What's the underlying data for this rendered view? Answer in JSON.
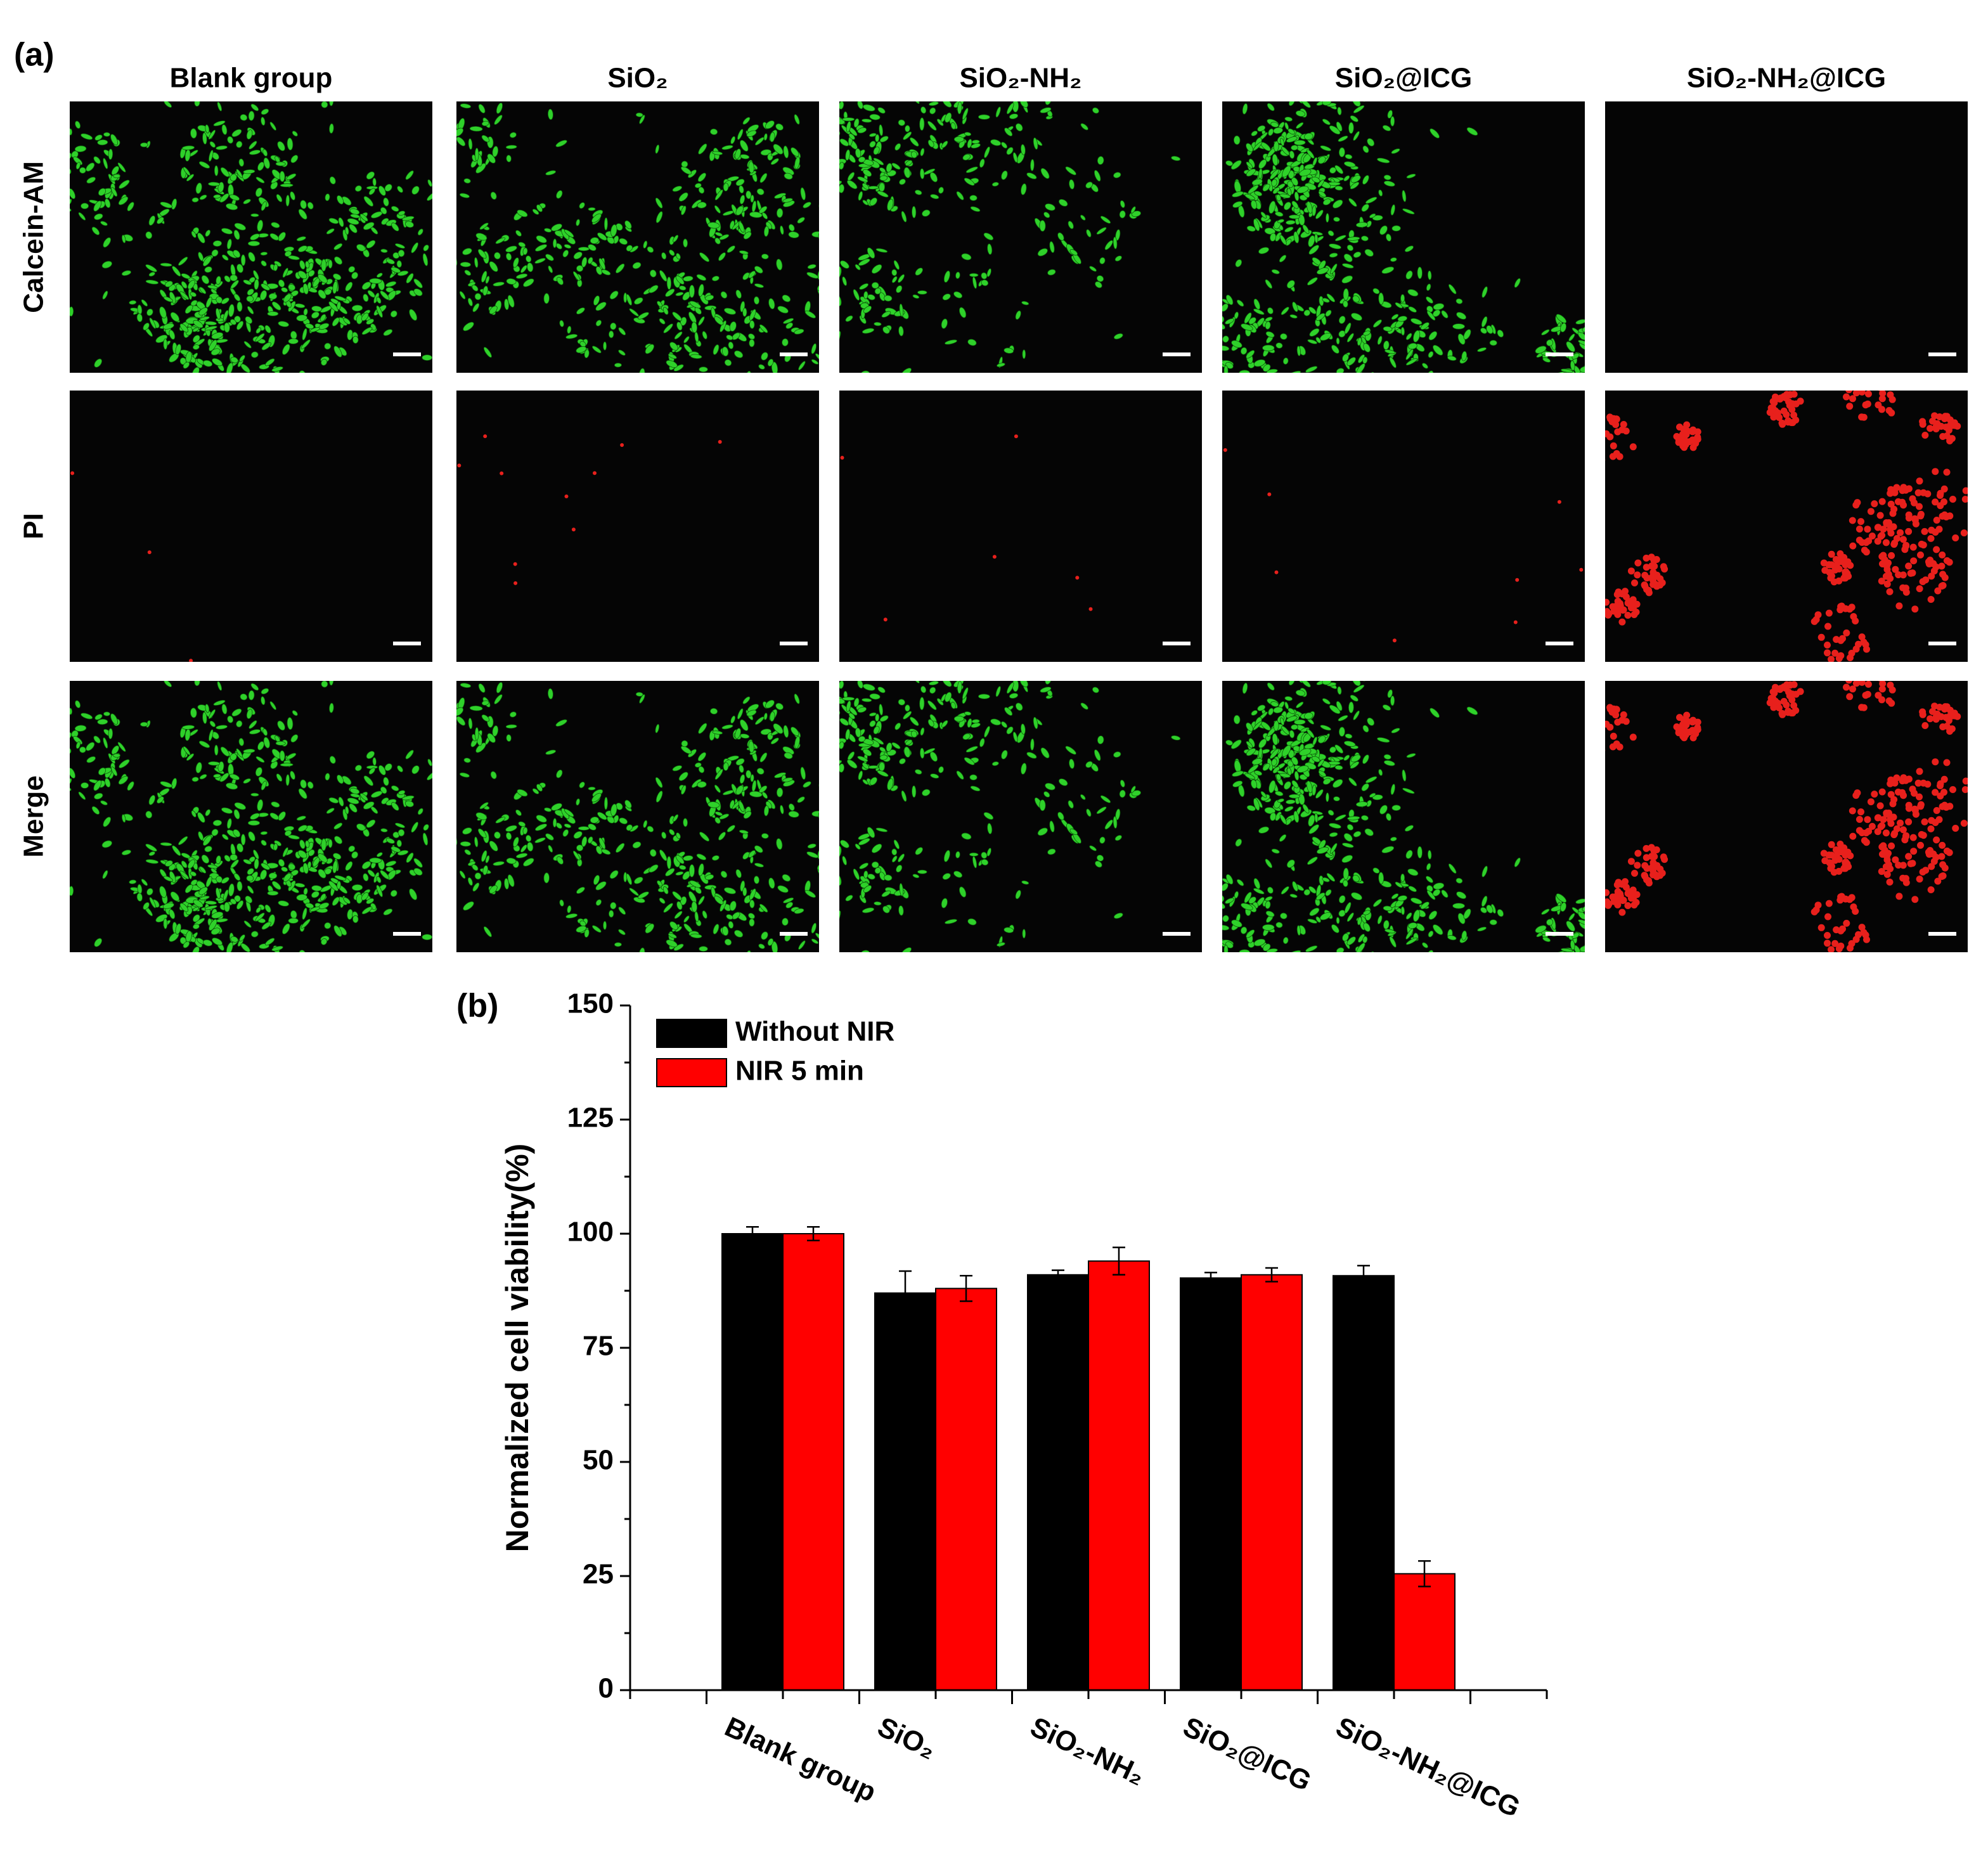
{
  "panel_a": {
    "label": "(a)",
    "columns": [
      "Blank group",
      "SiO₂",
      "SiO₂-NH₂",
      "SiO₂@ICG",
      "SiO₂-NH₂@ICG"
    ],
    "rows": [
      "Calcein-AM",
      "PI",
      "Merge"
    ]
  },
  "chart_data": {
    "type": "bar",
    "title": "(b)",
    "y_label": "Normalized cell viability(%)",
    "categories": [
      "Blank group",
      "SiO₂",
      "SiO₂-NH₂",
      "SiO₂@ICG",
      "SiO₂-NH₂@ICG"
    ],
    "series": [
      {
        "name": "Without NIR",
        "color": "#000000",
        "values": [
          100,
          87,
          91,
          90.3,
          90.8
        ],
        "errors": [
          1.5,
          4.8,
          1,
          1.2,
          2.2
        ]
      },
      {
        "name": "NIR 5 min",
        "color": "#ff0000",
        "values": [
          100,
          88,
          94,
          91,
          25.5
        ],
        "errors": [
          1.5,
          2.8,
          3,
          1.5,
          2.8
        ]
      }
    ],
    "ylim": [
      0,
      150
    ],
    "yticks": [
      0,
      25,
      50,
      75,
      100,
      125,
      150
    ],
    "legend": "top-left"
  }
}
